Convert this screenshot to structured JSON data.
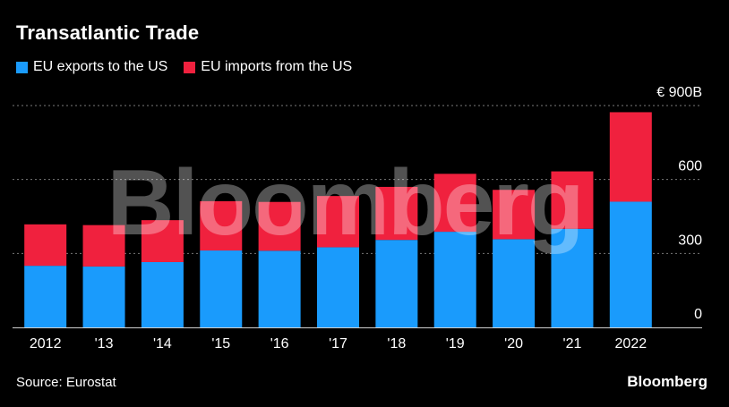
{
  "title": "Transatlantic Trade",
  "source": "Source: Eurostat",
  "brand": "Bloomberg",
  "watermark": "Bloomberg",
  "colors": {
    "exports": "#1a9bfc",
    "imports": "#f0213e",
    "grid": "#7a7a7a",
    "text": "#ffffff"
  },
  "chart_data": {
    "type": "bar",
    "stacked": true,
    "categories": [
      "2012",
      "'13",
      "'14",
      "'15",
      "'16",
      "'17",
      "'18",
      "'19",
      "'20",
      "'21",
      "2022"
    ],
    "series": [
      {
        "name": "EU exports to the US",
        "values": [
          250,
          247,
          265,
          312,
          311,
          325,
          355,
          388,
          358,
          400,
          510
        ]
      },
      {
        "name": "EU imports from the US",
        "values": [
          168,
          168,
          170,
          200,
          198,
          208,
          215,
          235,
          200,
          233,
          363
        ]
      }
    ],
    "yticks": [
      0,
      300,
      600,
      900
    ],
    "ytick_labels": [
      "0",
      "300",
      "600",
      "€ 900B"
    ],
    "ylim": [
      0,
      900
    ],
    "grid": true,
    "legend_position": "top-left"
  }
}
